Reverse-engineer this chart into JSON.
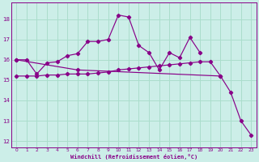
{
  "bg_color": "#cceee8",
  "grid_color": "#aaddcc",
  "line_color": "#880088",
  "xlabel": "Windchill (Refroidissement éolien,°C)",
  "xlim": [
    -0.5,
    23.5
  ],
  "ylim": [
    11.7,
    18.8
  ],
  "yticks": [
    12,
    13,
    14,
    15,
    16,
    17,
    18
  ],
  "xticks": [
    0,
    1,
    2,
    3,
    4,
    5,
    6,
    7,
    8,
    9,
    10,
    11,
    12,
    13,
    14,
    15,
    16,
    17,
    18,
    19,
    20,
    21,
    22,
    23
  ],
  "curve1_x": [
    0,
    1,
    2,
    3,
    4,
    5,
    6,
    7,
    8,
    9,
    10,
    11,
    12,
    13,
    14,
    15,
    16,
    17,
    18
  ],
  "curve1_y": [
    16.0,
    16.0,
    15.3,
    15.85,
    15.9,
    16.2,
    16.3,
    16.9,
    16.9,
    17.0,
    18.2,
    18.1,
    16.7,
    16.35,
    15.5,
    16.35,
    16.1,
    17.1,
    16.35
  ],
  "curve2_x": [
    0,
    1,
    2,
    3,
    4,
    5,
    6,
    7,
    8,
    9,
    10,
    11,
    12,
    13,
    14,
    15,
    16,
    17,
    18,
    19,
    20
  ],
  "curve2_y": [
    15.2,
    15.2,
    15.2,
    15.25,
    15.25,
    15.3,
    15.3,
    15.3,
    15.35,
    15.4,
    15.5,
    15.55,
    15.6,
    15.65,
    15.7,
    15.75,
    15.8,
    15.85,
    15.9,
    15.9,
    15.2
  ],
  "curve3_x": [
    0,
    6,
    20,
    21,
    22,
    23
  ],
  "curve3_y": [
    16.0,
    15.5,
    15.2,
    14.4,
    13.0,
    12.3
  ]
}
